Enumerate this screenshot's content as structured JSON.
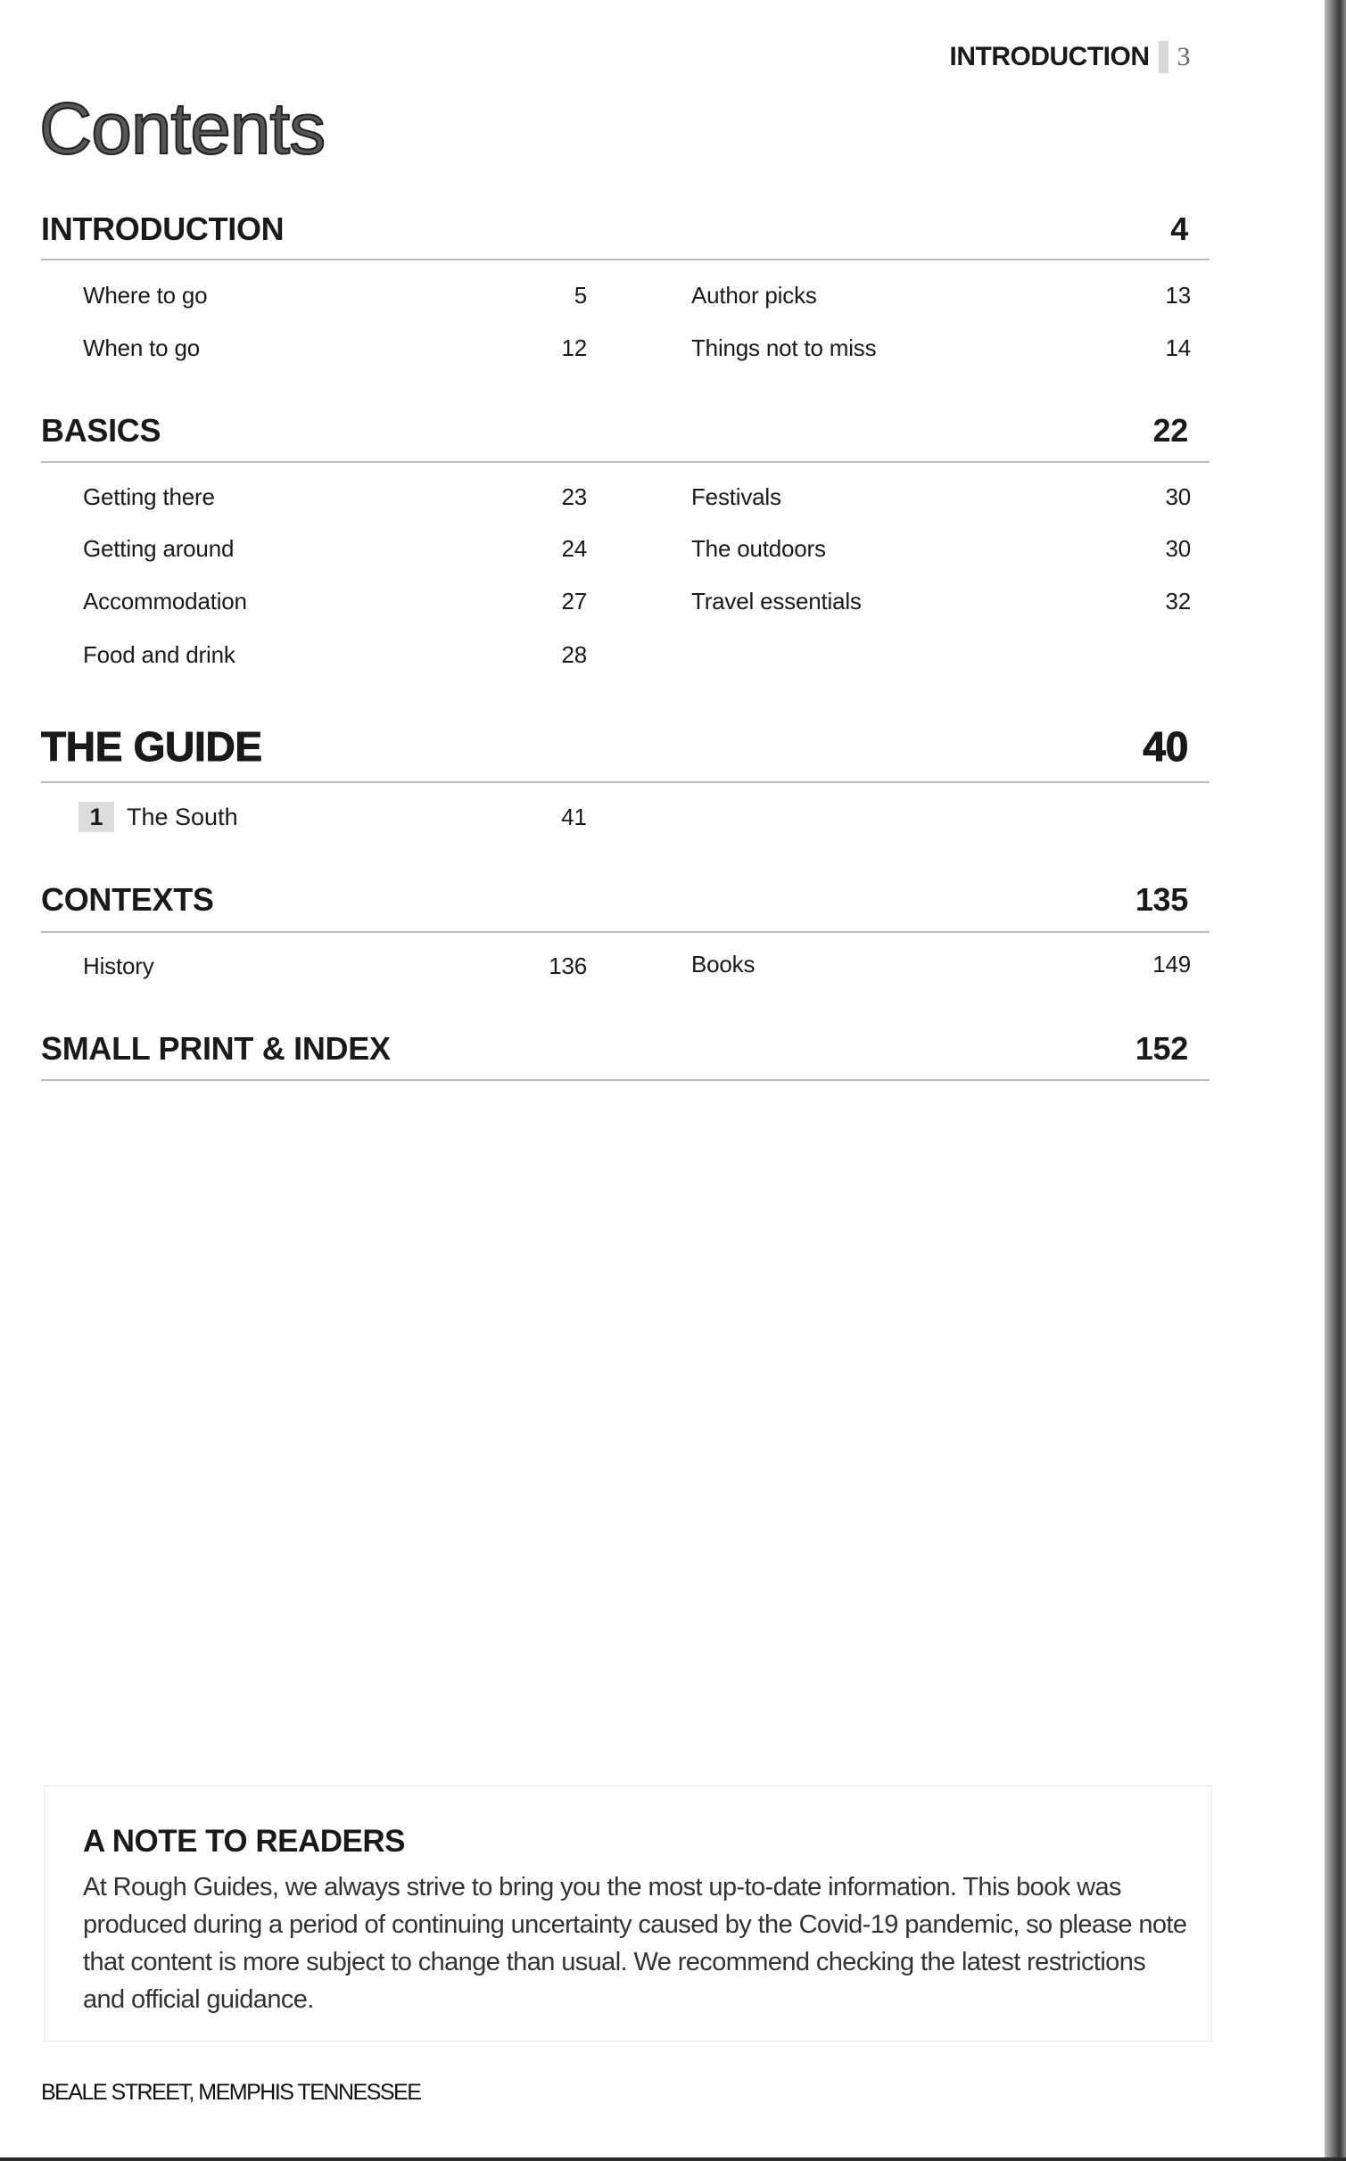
{
  "running_head": {
    "section": "INTRODUCTION",
    "page": "3"
  },
  "title": "Contents",
  "sections": [
    {
      "title": "INTRODUCTION",
      "page": "4",
      "left": [
        {
          "label": "Where to go",
          "page": "5"
        },
        {
          "label": "When to go",
          "page": "12"
        }
      ],
      "right": [
        {
          "label": "Author picks",
          "page": "13"
        },
        {
          "label": "Things not to miss",
          "page": "14"
        }
      ]
    },
    {
      "title": "BASICS",
      "page": "22",
      "left": [
        {
          "label": "Getting there",
          "page": "23"
        },
        {
          "label": "Getting around",
          "page": "24"
        },
        {
          "label": "Accommodation",
          "page": "27"
        },
        {
          "label": "Food and drink",
          "page": "28"
        }
      ],
      "right": [
        {
          "label": "Festivals",
          "page": "30"
        },
        {
          "label": "The outdoors",
          "page": "30"
        },
        {
          "label": "Travel essentials",
          "page": "32"
        }
      ]
    },
    {
      "title": "THE GUIDE",
      "page": "40",
      "chapters": [
        {
          "number": "1",
          "label": "The South",
          "page": "41"
        }
      ]
    },
    {
      "title": "CONTEXTS",
      "page": "135",
      "left": [
        {
          "label": "History",
          "page": "136"
        }
      ],
      "right": [
        {
          "label": "Books",
          "page": "149"
        }
      ]
    },
    {
      "title": "SMALL PRINT & INDEX",
      "page": "152"
    }
  ],
  "note": {
    "heading": "A NOTE TO READERS",
    "body": "At Rough Guides, we always strive to bring you the most up-to-date information. This book was produced during a period of continuing uncertainty caused by the Covid-19 pandemic, so please note that content is more subject to change than usual. We recommend checking the latest restrictions and official guidance."
  },
  "caption": "BEALE STREET, MEMPHIS TENNESSEE"
}
